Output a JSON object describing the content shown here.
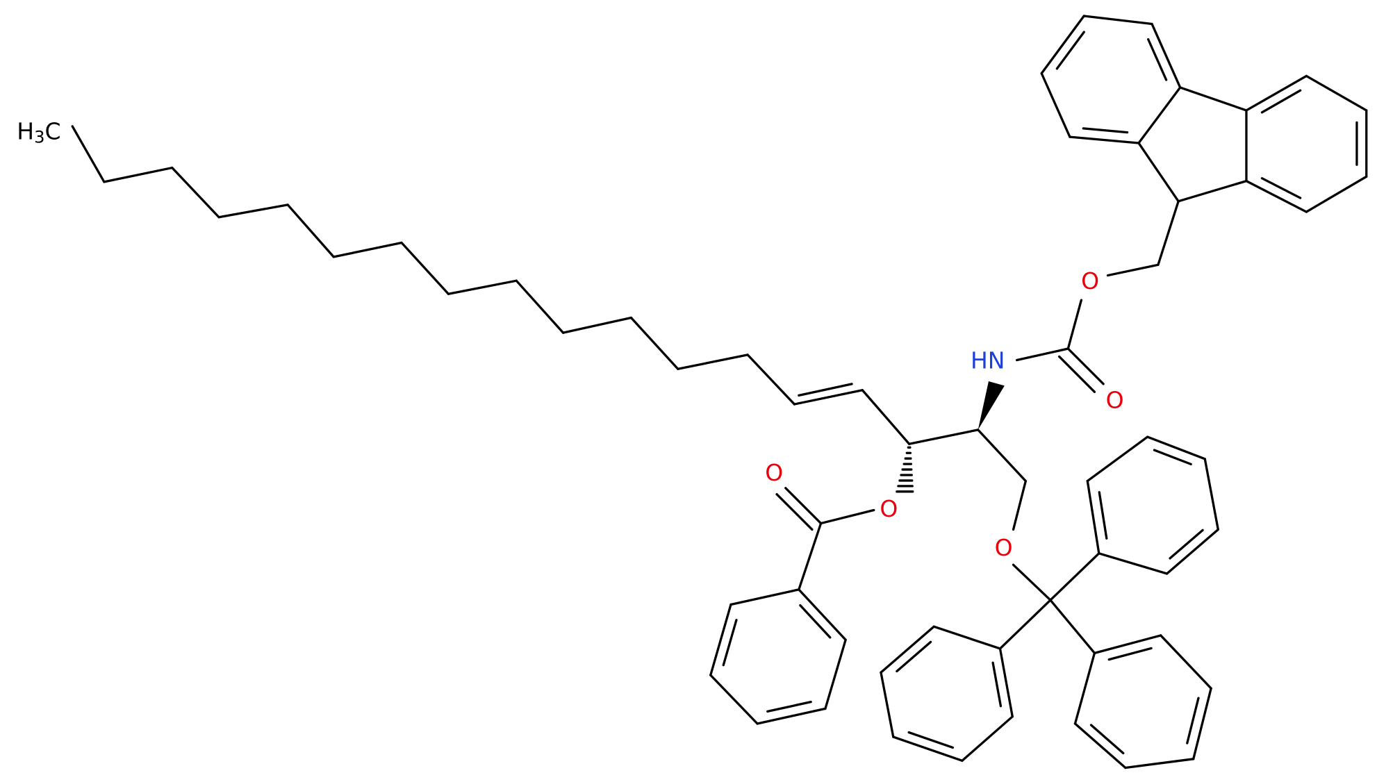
{
  "atoms": {
    "methyl": {
      "h": "H",
      "n": "3",
      "c": "C"
    },
    "carbamate_ether_o": "O",
    "amide_n": "HN",
    "carbamate_carbonyl_o": "O",
    "benzoate_carbonyl_o": "O",
    "benzoate_ester_o": "O",
    "trityl_ether_o": "O"
  }
}
